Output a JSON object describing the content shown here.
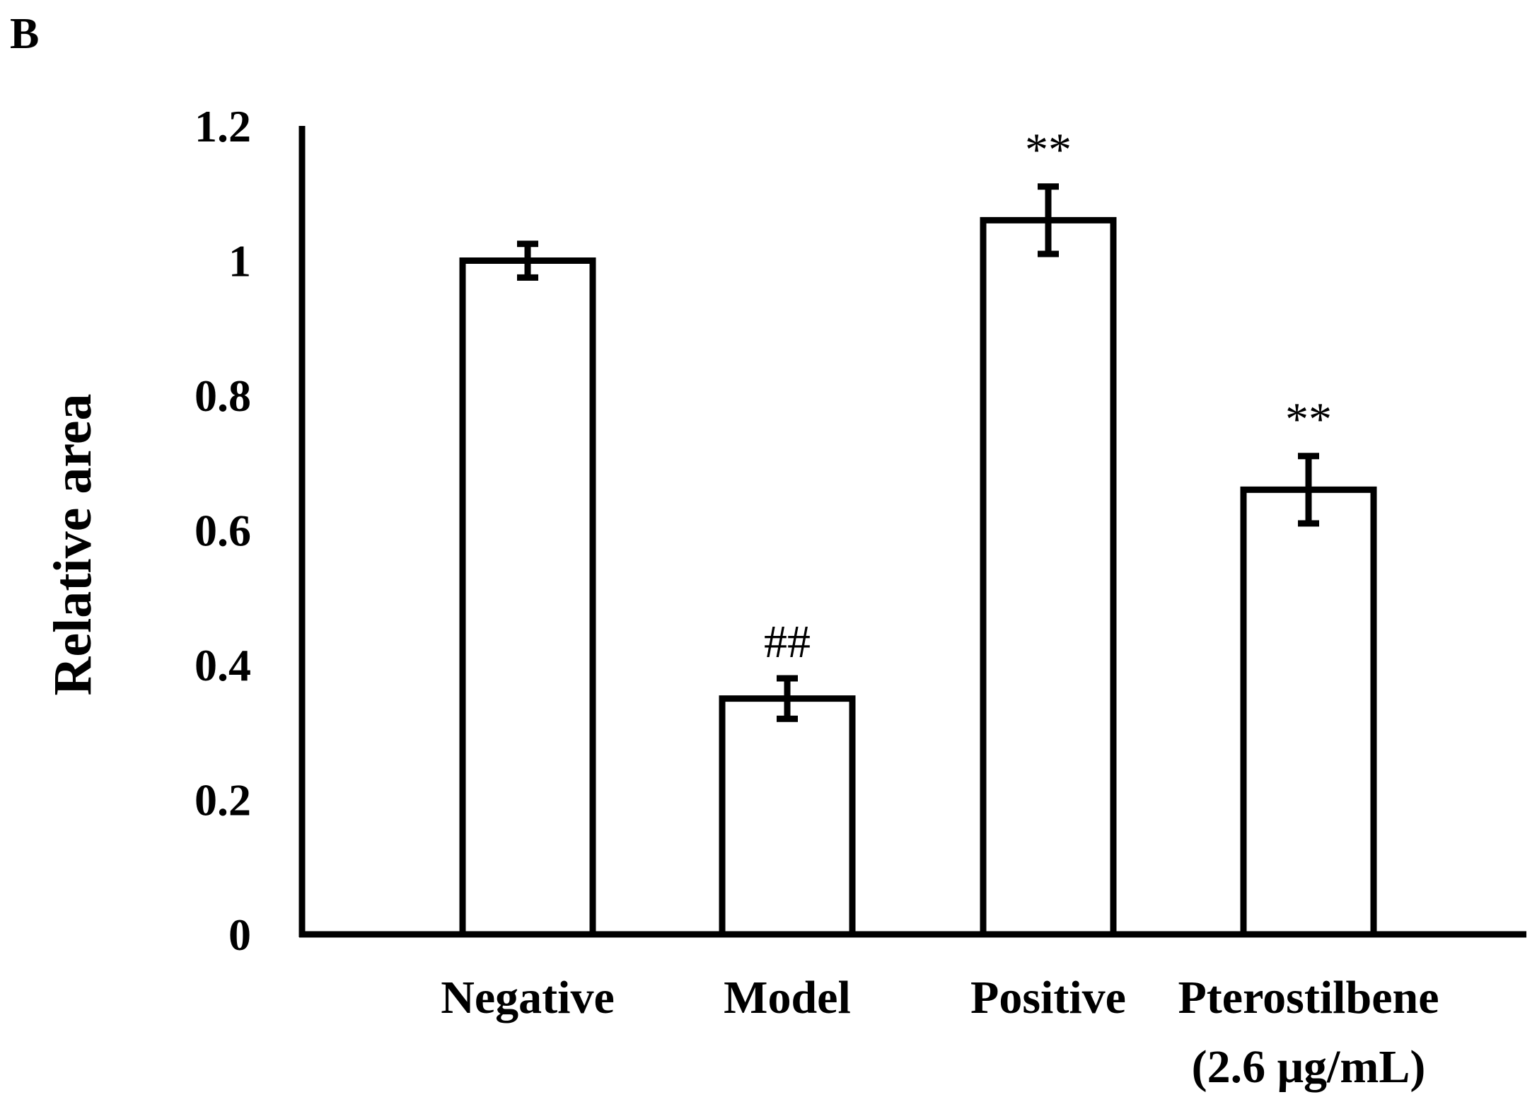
{
  "panel_label": "B",
  "chart_data": {
    "type": "bar",
    "title": "",
    "xlabel": "",
    "ylabel": "Relative area",
    "ylim": [
      0,
      1.2
    ],
    "yticks": [
      "0",
      "0.2",
      "0.4",
      "0.6",
      "0.8",
      "1",
      "1.2"
    ],
    "categories": [
      {
        "line1": "Negative",
        "line2": ""
      },
      {
        "line1": "Model",
        "line2": ""
      },
      {
        "line1": "Positive",
        "line2": ""
      },
      {
        "line1": "Pterostilbene",
        "line2": "(2.6 μg/mL)"
      }
    ],
    "values": [
      1.0,
      0.35,
      1.06,
      0.66
    ],
    "errors": [
      0.025,
      0.03,
      0.05,
      0.05
    ],
    "significance": [
      "",
      "##",
      "**",
      "**"
    ],
    "bar_fill": "#ffffff",
    "bar_stroke": "#000000"
  }
}
